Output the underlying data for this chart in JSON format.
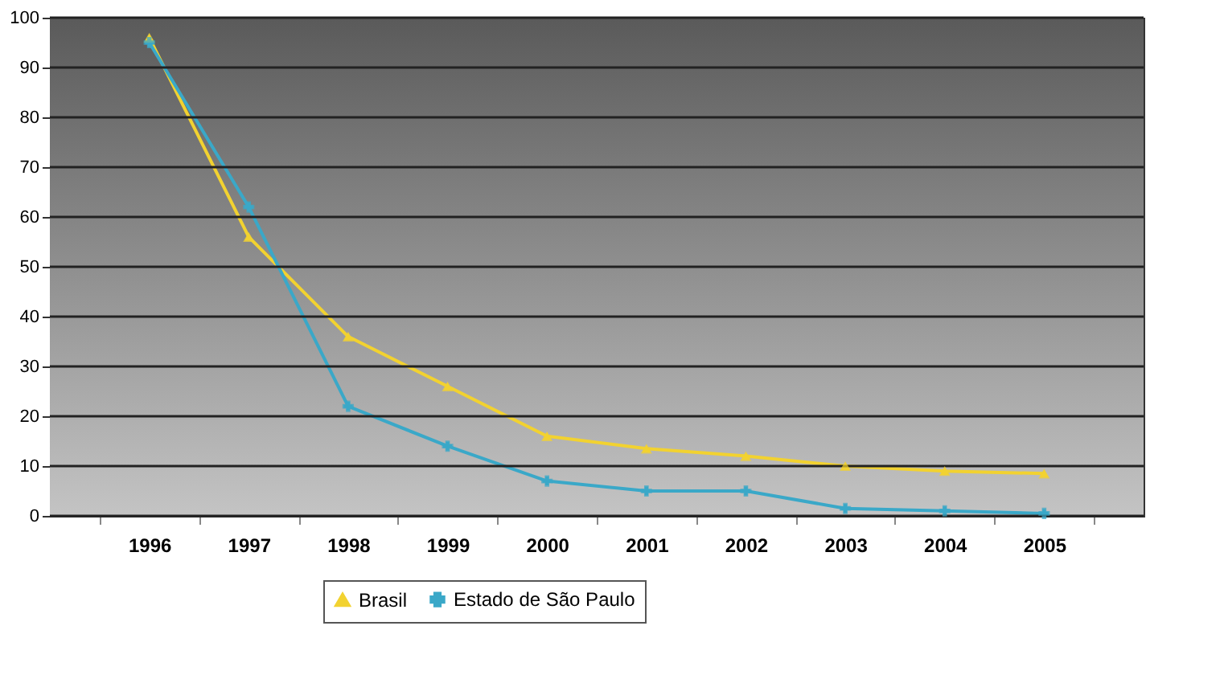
{
  "chart_data": {
    "type": "line",
    "categories": [
      "1996",
      "1997",
      "1998",
      "1999",
      "2000",
      "2001",
      "2002",
      "2003",
      "2004",
      "2005"
    ],
    "series": [
      {
        "name": "Brasil",
        "color": "#f2d230",
        "marker": "triangle",
        "values": [
          96,
          56,
          36,
          26,
          16,
          13.5,
          12,
          10,
          9,
          8.5
        ]
      },
      {
        "name": "Estado de São Paulo",
        "color": "#3aa8c8",
        "marker": "cross",
        "values": [
          95,
          62,
          22,
          14,
          7,
          5,
          5,
          1.5,
          1,
          0.5
        ]
      }
    ],
    "ylim": [
      0,
      100
    ],
    "yticks": [
      0,
      10,
      20,
      30,
      40,
      50,
      60,
      70,
      80,
      90,
      100
    ],
    "grid": "y",
    "legend": "bottom"
  }
}
